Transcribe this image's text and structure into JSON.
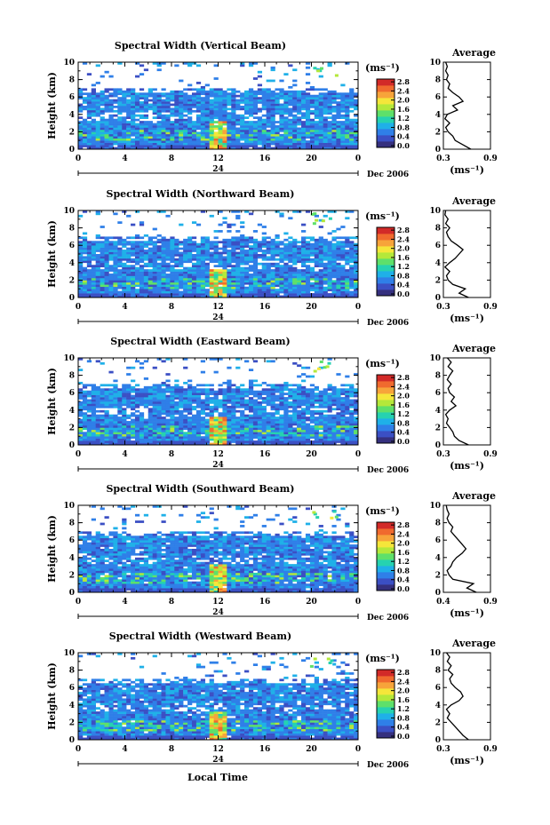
{
  "x_axis": {
    "ticks": [
      "0",
      "4",
      "8",
      "12",
      "16",
      "20",
      "0"
    ],
    "day_label": "24",
    "month_label": "Dec 2006",
    "xlabel": "Local Time"
  },
  "colorbar": {
    "unit_label": "(ms⁻¹)",
    "ticks": [
      "2.8",
      "2.4",
      "2.0",
      "1.6",
      "1.2",
      "0.8",
      "0.4",
      "0.0"
    ],
    "colors": [
      "#35307e",
      "#3b4fc4",
      "#2f7fe8",
      "#1fb0e8",
      "#26d2b0",
      "#5ee06a",
      "#b4e83a",
      "#f5e63a",
      "#f7a43a",
      "#f06a2e",
      "#d22a28"
    ]
  },
  "profile_axis": {
    "title": "Average",
    "xlabel": "(ms⁻¹)",
    "yticks": [
      "10",
      "8",
      "6",
      "4",
      "2",
      "0"
    ]
  },
  "heatmap_axis": {
    "ylabel": "Height (km)",
    "yticks": [
      "10",
      "8",
      "6",
      "4",
      "2",
      "0"
    ]
  },
  "panels": [
    {
      "title": "Spectral Width (Vertical Beam)",
      "profile_xticks": [
        "0.3",
        "0.9"
      ]
    },
    {
      "title": "Spectral Width (Northward Beam)",
      "profile_xticks": [
        "0.3",
        "0.9"
      ]
    },
    {
      "title": "Spectral Width (Eastward Beam)",
      "profile_xticks": [
        "0.3",
        "0.9"
      ]
    },
    {
      "title": "Spectral Width (Southward Beam)",
      "profile_xticks": [
        "0.4",
        "0.9"
      ]
    },
    {
      "title": "Spectral Width (Westward Beam)",
      "profile_xticks": [
        "0.3",
        "0.9"
      ]
    }
  ],
  "chart_data": [
    {
      "type": "heatmap",
      "title": "Spectral Width (Vertical Beam)",
      "xlabel": "",
      "ylabel": "Height (km)",
      "xlim": [
        0,
        24
      ],
      "ylim": [
        0,
        10
      ],
      "clim": [
        0.0,
        3.0
      ],
      "profile": {
        "type": "line",
        "title": "Average",
        "xlabel": "(ms⁻¹)",
        "xlim": [
          0.3,
          0.9
        ],
        "ylim": [
          0,
          10
        ],
        "height": [
          0,
          0.5,
          1,
          1.5,
          2,
          2.5,
          3,
          3.5,
          4,
          4.5,
          5,
          5.5,
          6,
          6.5,
          7,
          7.5,
          8,
          8.5,
          9,
          9.5,
          10
        ],
        "value": [
          0.65,
          0.55,
          0.45,
          0.42,
          0.36,
          0.33,
          0.38,
          0.32,
          0.35,
          0.48,
          0.42,
          0.55,
          0.5,
          0.42,
          0.36,
          0.38,
          0.34,
          0.36,
          0.33,
          0.35,
          0.33
        ]
      }
    },
    {
      "type": "heatmap",
      "title": "Spectral Width (Northward Beam)",
      "xlabel": "",
      "ylabel": "Height (km)",
      "xlim": [
        0,
        24
      ],
      "ylim": [
        0,
        10
      ],
      "clim": [
        0.0,
        3.0
      ],
      "profile": {
        "type": "line",
        "title": "Average",
        "xlabel": "(ms⁻¹)",
        "xlim": [
          0.3,
          0.9
        ],
        "ylim": [
          0,
          10
        ],
        "height": [
          0,
          0.5,
          1,
          1.5,
          2,
          2.5,
          3,
          3.5,
          4,
          4.5,
          5,
          5.5,
          6,
          6.5,
          7,
          7.5,
          8,
          8.5,
          9,
          9.5,
          10
        ],
        "value": [
          0.62,
          0.5,
          0.58,
          0.42,
          0.36,
          0.34,
          0.38,
          0.32,
          0.38,
          0.45,
          0.5,
          0.55,
          0.48,
          0.4,
          0.36,
          0.34,
          0.38,
          0.33,
          0.36,
          0.32,
          0.33
        ]
      }
    },
    {
      "type": "heatmap",
      "title": "Spectral Width (Eastward Beam)",
      "xlabel": "",
      "ylabel": "Height (km)",
      "xlim": [
        0,
        24
      ],
      "ylim": [
        0,
        10
      ],
      "clim": [
        0.0,
        3.0
      ],
      "profile": {
        "type": "line",
        "title": "Average",
        "xlabel": "(ms⁻¹)",
        "xlim": [
          0.3,
          0.9
        ],
        "ylim": [
          0,
          10
        ],
        "height": [
          0,
          0.5,
          1,
          1.5,
          2,
          2.5,
          3,
          3.5,
          4,
          4.5,
          5,
          5.5,
          6,
          6.5,
          7,
          7.5,
          8,
          8.5,
          9,
          9.5,
          10
        ],
        "value": [
          0.62,
          0.5,
          0.44,
          0.42,
          0.38,
          0.34,
          0.36,
          0.33,
          0.38,
          0.46,
          0.4,
          0.44,
          0.38,
          0.36,
          0.4,
          0.35,
          0.38,
          0.42,
          0.36,
          0.4,
          0.35
        ]
      }
    },
    {
      "type": "heatmap",
      "title": "Spectral Width (Southward Beam)",
      "xlabel": "",
      "ylabel": "Height (km)",
      "xlim": [
        0,
        24
      ],
      "ylim": [
        0,
        10
      ],
      "clim": [
        0.0,
        3.0
      ],
      "profile": {
        "type": "line",
        "title": "Average",
        "xlabel": "(ms⁻¹)",
        "xlim": [
          0.4,
          0.9
        ],
        "ylim": [
          0,
          10
        ],
        "height": [
          0,
          0.5,
          1,
          1.5,
          2,
          2.5,
          3,
          3.5,
          4,
          4.5,
          5,
          5.5,
          6,
          6.5,
          7,
          7.5,
          8,
          8.5,
          9,
          9.5,
          10
        ],
        "value": [
          0.75,
          0.65,
          0.72,
          0.5,
          0.46,
          0.44,
          0.48,
          0.5,
          0.54,
          0.6,
          0.64,
          0.6,
          0.56,
          0.52,
          0.48,
          0.5,
          0.46,
          0.44,
          0.46,
          0.44,
          0.43
        ]
      }
    },
    {
      "type": "heatmap",
      "title": "Spectral Width (Westward Beam)",
      "xlabel": "Local Time",
      "ylabel": "Height (km)",
      "xlim": [
        0,
        24
      ],
      "ylim": [
        0,
        10
      ],
      "clim": [
        0.0,
        3.0
      ],
      "profile": {
        "type": "line",
        "title": "Average",
        "xlabel": "(ms⁻¹)",
        "xlim": [
          0.3,
          0.9
        ],
        "ylim": [
          0,
          10
        ],
        "height": [
          0,
          0.5,
          1,
          1.5,
          2,
          2.5,
          3,
          3.5,
          4,
          4.5,
          5,
          5.5,
          6,
          6.5,
          7,
          7.5,
          8,
          8.5,
          9,
          9.5,
          10
        ],
        "value": [
          0.62,
          0.55,
          0.5,
          0.45,
          0.4,
          0.35,
          0.38,
          0.34,
          0.4,
          0.5,
          0.55,
          0.52,
          0.45,
          0.4,
          0.38,
          0.42,
          0.36,
          0.4,
          0.35,
          0.38,
          0.34
        ]
      }
    }
  ]
}
